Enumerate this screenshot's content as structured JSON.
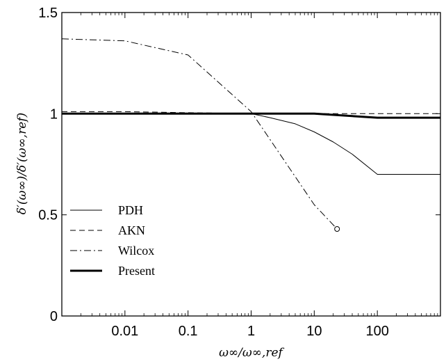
{
  "chart_data": {
    "type": "line",
    "title": "",
    "xlabel": "ω∞/ω∞,ref",
    "ylabel": "δ′(ω∞)/δ′(ω∞,ref)",
    "xscale": "log",
    "xlim": [
      0.001,
      1000
    ],
    "ylim": [
      0,
      1.5
    ],
    "xticks": [
      {
        "value": 0.01,
        "label": "0.01"
      },
      {
        "value": 0.1,
        "label": "0.1"
      },
      {
        "value": 1,
        "label": "1"
      },
      {
        "value": 10,
        "label": "10"
      },
      {
        "value": 100,
        "label": "100"
      }
    ],
    "yticks": [
      {
        "value": 0,
        "label": "0"
      },
      {
        "value": 0.5,
        "label": "0.5"
      },
      {
        "value": 1,
        "label": "1"
      },
      {
        "value": 1.5,
        "label": "1.5"
      }
    ],
    "grid": false,
    "legend_position": "bottom-left",
    "series": [
      {
        "name": "PDH",
        "style": "solid",
        "width": "thin",
        "color": "#000000",
        "x": [
          0.001,
          0.01,
          0.1,
          1,
          2,
          5,
          10,
          20,
          40,
          100,
          1000
        ],
        "y": [
          1.0,
          1.0,
          1.0,
          1.0,
          0.98,
          0.95,
          0.91,
          0.86,
          0.8,
          0.7,
          0.7
        ]
      },
      {
        "name": "AKN",
        "style": "dashed",
        "width": "thin",
        "color": "#000000",
        "x": [
          0.001,
          0.01,
          0.1,
          1,
          10,
          30,
          100,
          1000
        ],
        "y": [
          1.01,
          1.01,
          1.005,
          1.0,
          1.0,
          1.0,
          1.0,
          1.0
        ]
      },
      {
        "name": "Wilcox",
        "style": "dashdot",
        "width": "thin",
        "color": "#000000",
        "marker_end": "circle",
        "x": [
          0.001,
          0.01,
          0.1,
          1,
          10,
          23
        ],
        "y": [
          1.37,
          1.36,
          1.29,
          1.01,
          0.55,
          0.43
        ]
      },
      {
        "name": "Present",
        "style": "solid",
        "width": "thick",
        "color": "#000000",
        "x": [
          0.001,
          0.01,
          0.1,
          1,
          10,
          100,
          1000
        ],
        "y": [
          1.0,
          1.0,
          1.0,
          1.0,
          1.0,
          0.98,
          0.98
        ]
      }
    ]
  }
}
